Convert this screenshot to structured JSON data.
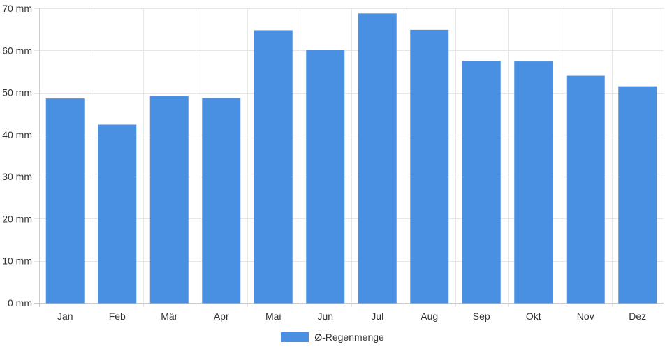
{
  "chart_data": {
    "type": "bar",
    "title": "",
    "xlabel": "",
    "ylabel": "",
    "categories": [
      "Jan",
      "Feb",
      "Mär",
      "Apr",
      "Mai",
      "Jun",
      "Jul",
      "Aug",
      "Sep",
      "Okt",
      "Nov",
      "Dez"
    ],
    "series": [
      {
        "name": "Ø-Regenmenge",
        "values": [
          48.5,
          42.3,
          49.1,
          48.6,
          64.7,
          60.1,
          68.7,
          64.8,
          57.4,
          57.3,
          53.9,
          51.4
        ],
        "color": "#4a90e2"
      }
    ],
    "ylim": [
      0,
      70
    ],
    "yticks": [
      "0 mm",
      "10 mm",
      "20 mm",
      "30 mm",
      "40 mm",
      "50 mm",
      "60 mm",
      "70 mm"
    ],
    "ytick_values": [
      0,
      10,
      20,
      30,
      40,
      50,
      60,
      70
    ],
    "grid": true,
    "legend_position": "bottom-center",
    "grid_color": "#e6e6e6",
    "axis_color": "#cccccc"
  }
}
